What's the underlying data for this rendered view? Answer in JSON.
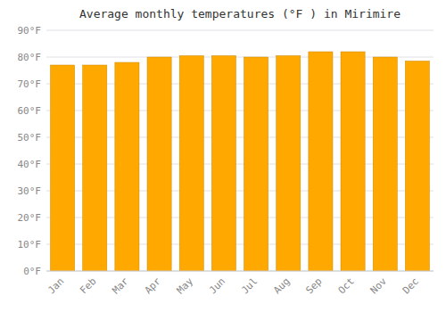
{
  "chart_data": {
    "type": "bar",
    "title": "Average monthly temperatures (°F ) in Mirimire",
    "categories": [
      "Jan",
      "Feb",
      "Mar",
      "Apr",
      "May",
      "Jun",
      "Jul",
      "Aug",
      "Sep",
      "Oct",
      "Nov",
      "Dec"
    ],
    "values": [
      77,
      77,
      78,
      80,
      80.5,
      80.5,
      80,
      80.5,
      82,
      82,
      80,
      78.5
    ],
    "color": "#FFA800",
    "ylim": [
      0,
      90
    ],
    "yticks": [
      {
        "value": 0,
        "label": "0°F"
      },
      {
        "value": 10,
        "label": "10°F"
      },
      {
        "value": 20,
        "label": "20°F"
      },
      {
        "value": 30,
        "label": "30°F"
      },
      {
        "value": 40,
        "label": "40°F"
      },
      {
        "value": 50,
        "label": "50°F"
      },
      {
        "value": 60,
        "label": "60°F"
      },
      {
        "value": 70,
        "label": "70°F"
      },
      {
        "value": 80,
        "label": "80°F"
      },
      {
        "value": 90,
        "label": "90°F"
      }
    ],
    "grid": true
  }
}
